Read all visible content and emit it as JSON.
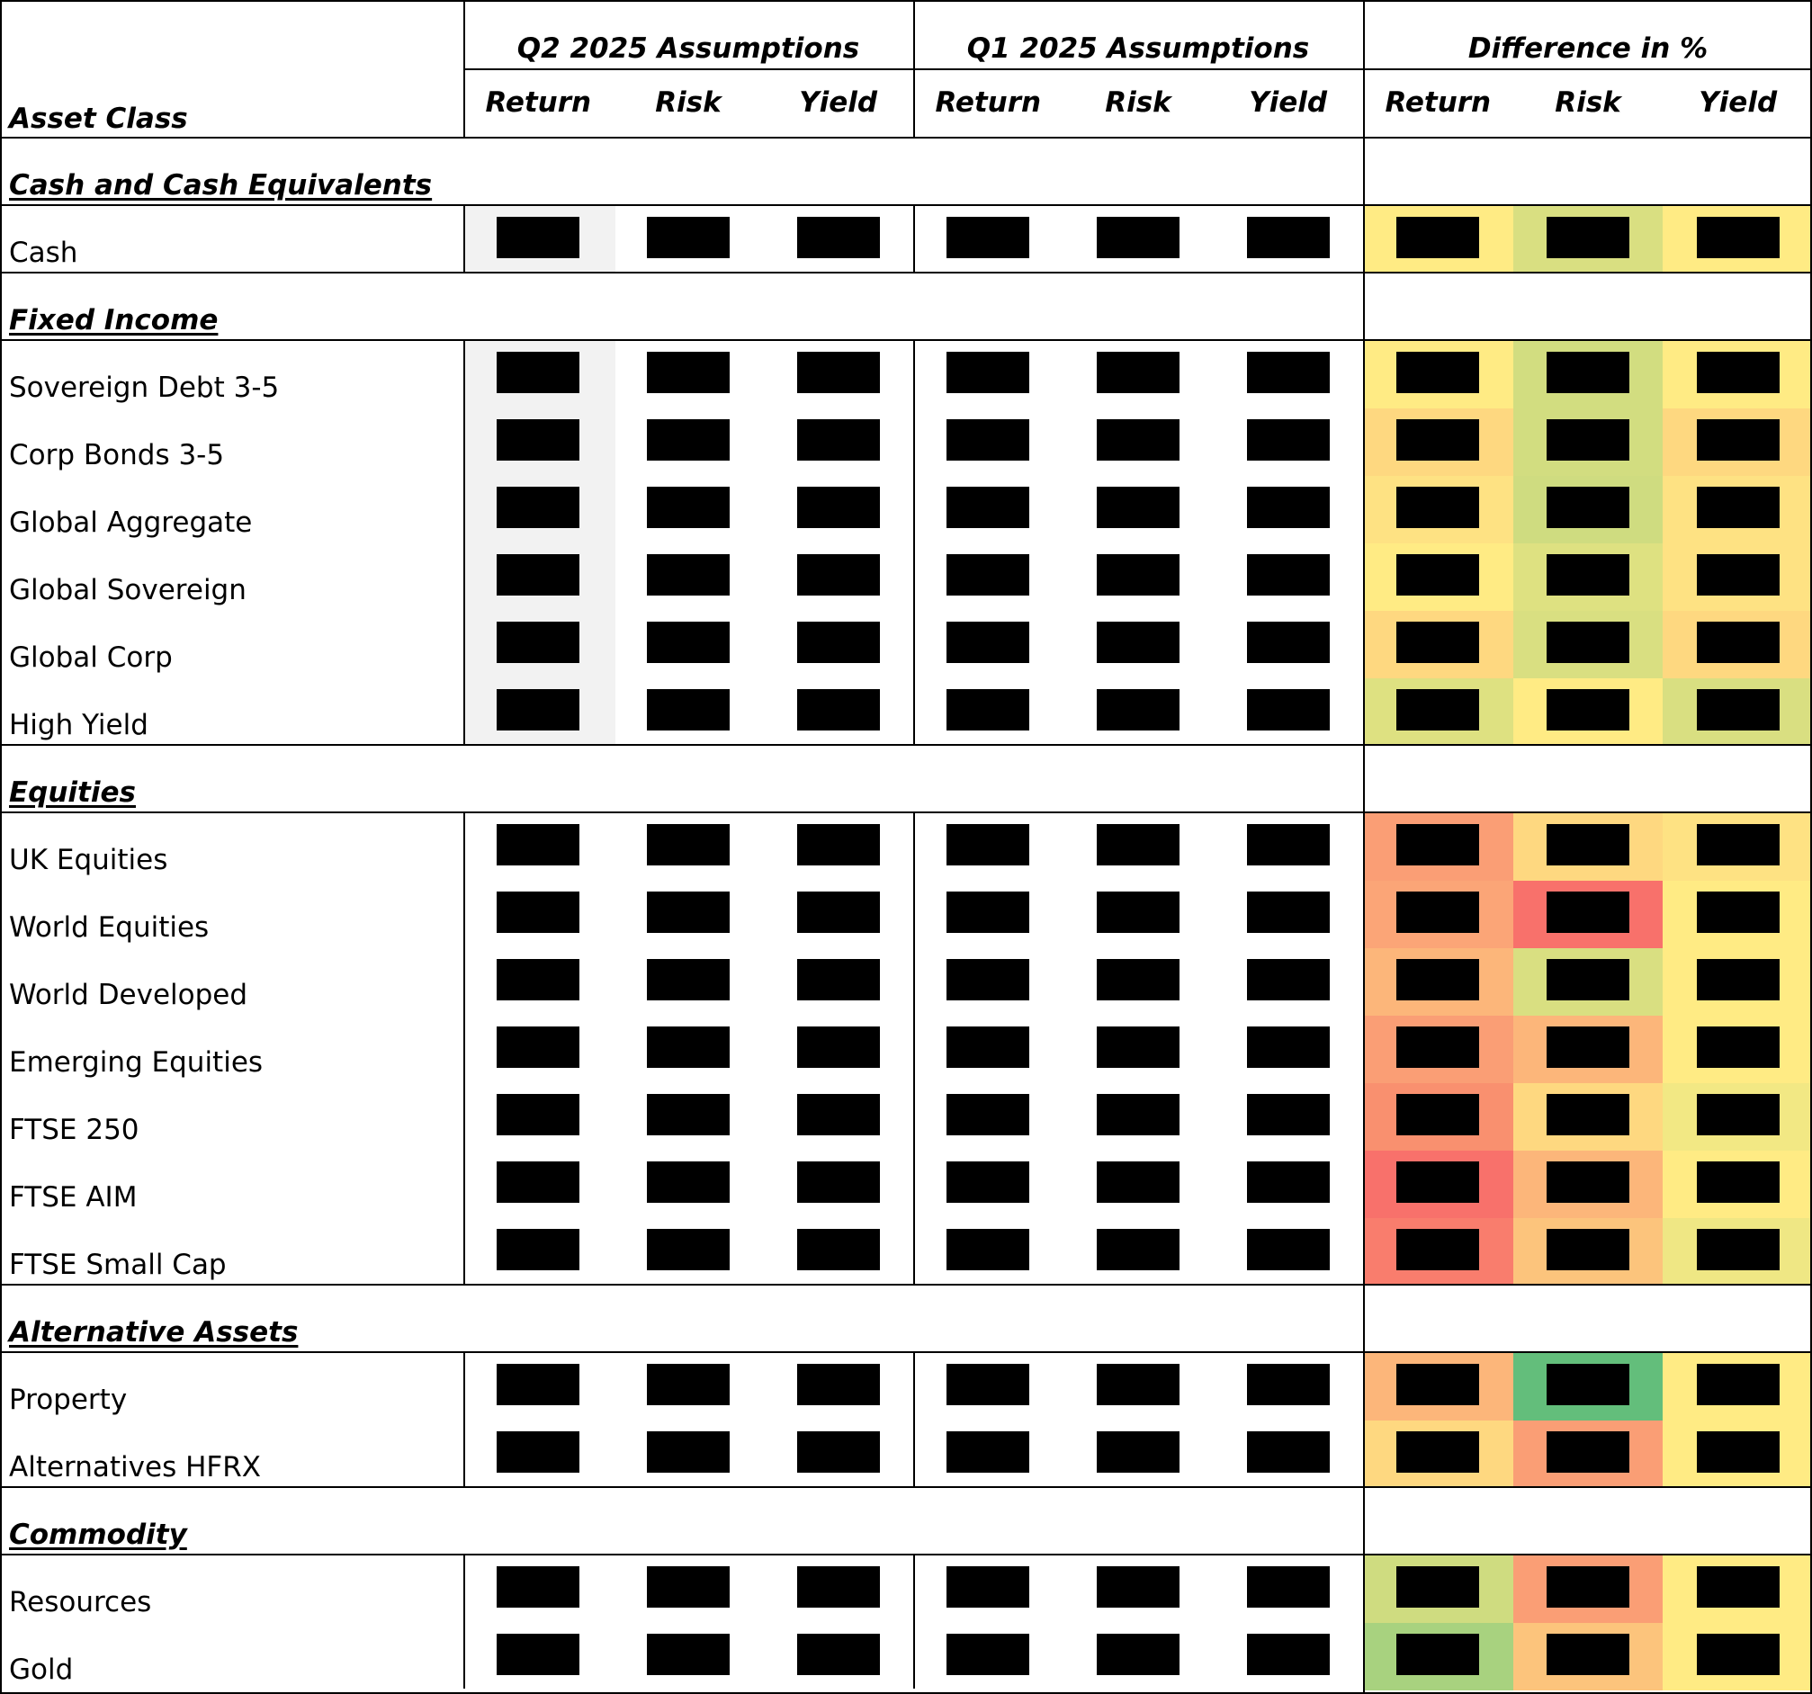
{
  "header": {
    "asset_class": "Asset Class",
    "groups": [
      "Q2 2025 Assumptions",
      "Q1 2025 Assumptions",
      "Difference in %"
    ],
    "subcols": [
      "Return",
      "Risk",
      "Yield",
      "Return",
      "Risk",
      "Yield",
      "Return",
      "Risk",
      "Yield"
    ]
  },
  "sections": [
    {
      "title": "Cash and Cash Equivalents",
      "rows": [
        "Cash"
      ]
    },
    {
      "title": "Fixed Income",
      "rows": [
        "Sovereign Debt 3-5",
        "Corp Bonds 3-5",
        "Global Aggregate",
        "Global Sovereign",
        "Global Corp",
        "High Yield"
      ]
    },
    {
      "title": "Equities",
      "rows": [
        "UK Equities",
        "World Equities",
        "World Developed",
        "Emerging Equities",
        "FTSE 250",
        "FTSE AIM",
        "FTSE Small Cap"
      ]
    },
    {
      "title": "Alternative Assets",
      "rows": [
        "Property",
        "Alternatives HFRX"
      ]
    },
    {
      "title": "Commodity",
      "rows": [
        "Resources",
        "Gold"
      ]
    }
  ],
  "heat_colors": [
    [
      "#ffeb84",
      "#d9df81",
      "#ffeb84"
    ],
    [
      "#ffeb84",
      "#d2dd80",
      "#ffeb84"
    ],
    [
      "#fed880",
      "#d2dd80",
      "#fed880"
    ],
    [
      "#fee283",
      "#cfdc80",
      "#fee283"
    ],
    [
      "#ffeb84",
      "#dee181",
      "#fee283"
    ],
    [
      "#fed880",
      "#d9df81",
      "#fed880"
    ],
    [
      "#dee181",
      "#ffeb84",
      "#d9df81"
    ],
    [
      "#fa9e75",
      "#fed880",
      "#fee283"
    ],
    [
      "#fba577",
      "#f8716b",
      "#ffeb84"
    ],
    [
      "#fcb67a",
      "#d9df81",
      "#ffeb84"
    ],
    [
      "#fa9e75",
      "#fcb67a",
      "#ffeb84"
    ],
    [
      "#f9906f",
      "#fed880",
      "#f2e884"
    ],
    [
      "#f8716b",
      "#fcb67a",
      "#ffeb84"
    ],
    [
      "#f97d6d",
      "#fcc47c",
      "#efe784"
    ],
    [
      "#fcb67a",
      "#63be7b",
      "#ffeb84"
    ],
    [
      "#fed880",
      "#fa9e75",
      "#ffeb84"
    ],
    [
      "#cfdc80",
      "#fa9e75",
      "#ffeb84"
    ],
    [
      "#a8d27f",
      "#fcc47c",
      "#ffeb84"
    ]
  ]
}
